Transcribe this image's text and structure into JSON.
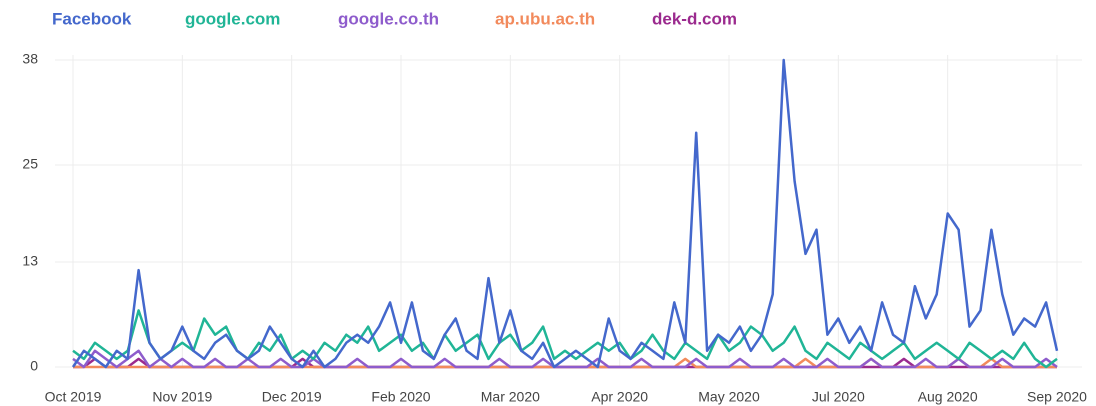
{
  "chart_data": {
    "type": "line",
    "categories": [
      "Oct 2019",
      null,
      null,
      null,
      null,
      null,
      null,
      null,
      null,
      null,
      "Nov 2019",
      null,
      null,
      null,
      null,
      null,
      null,
      null,
      null,
      null,
      "Dec 2019",
      null,
      null,
      null,
      null,
      null,
      null,
      null,
      null,
      null,
      "Feb 2020",
      null,
      null,
      null,
      null,
      null,
      null,
      null,
      null,
      null,
      "Mar 2020",
      null,
      null,
      null,
      null,
      null,
      null,
      null,
      null,
      null,
      "Apr 2020",
      null,
      null,
      null,
      null,
      null,
      null,
      null,
      null,
      null,
      "May 2020",
      null,
      null,
      null,
      null,
      null,
      null,
      null,
      null,
      null,
      "Jul 2020",
      null,
      null,
      null,
      null,
      null,
      null,
      null,
      null,
      null,
      "Aug 2020",
      null,
      null,
      null,
      null,
      null,
      null,
      null,
      null,
      null,
      "Sep 2020"
    ],
    "ylim": [
      0,
      38
    ],
    "yticks": [
      0,
      13,
      25,
      38
    ],
    "grid": true,
    "legend": "top",
    "series": [
      {
        "name": "Facebook",
        "color": "#4468cc",
        "values": [
          0,
          2,
          1,
          0,
          2,
          1,
          12,
          3,
          1,
          2,
          5,
          2,
          1,
          3,
          4,
          2,
          1,
          2,
          5,
          3,
          1,
          0,
          2,
          0,
          1,
          3,
          4,
          3,
          5,
          8,
          3,
          8,
          2,
          1,
          4,
          6,
          2,
          1,
          11,
          3,
          7,
          2,
          1,
          3,
          0,
          1,
          2,
          1,
          0,
          6,
          2,
          1,
          3,
          2,
          1,
          8,
          3,
          29,
          2,
          4,
          3,
          5,
          2,
          4,
          9,
          38,
          23,
          14,
          17,
          4,
          6,
          3,
          5,
          2,
          8,
          4,
          3,
          10,
          6,
          9,
          19,
          17,
          5,
          7,
          17,
          9,
          4,
          6,
          5,
          8,
          2
        ]
      },
      {
        "name": "google.com",
        "color": "#20b596",
        "values": [
          2,
          1,
          3,
          2,
          1,
          2,
          7,
          3,
          1,
          2,
          3,
          2,
          6,
          4,
          5,
          2,
          1,
          3,
          2,
          4,
          1,
          2,
          1,
          3,
          2,
          4,
          3,
          5,
          2,
          3,
          4,
          2,
          3,
          1,
          4,
          2,
          3,
          4,
          1,
          3,
          4,
          2,
          3,
          5,
          1,
          2,
          1,
          2,
          3,
          2,
          3,
          1,
          2,
          4,
          2,
          1,
          3,
          2,
          1,
          4,
          2,
          3,
          5,
          4,
          2,
          3,
          5,
          2,
          1,
          3,
          2,
          1,
          3,
          2,
          1,
          2,
          3,
          1,
          2,
          3,
          2,
          1,
          3,
          2,
          1,
          2,
          1,
          3,
          1,
          0,
          1
        ]
      },
      {
        "name": "google.co.th",
        "color": "#8e5ccc",
        "values": [
          1,
          0,
          2,
          1,
          0,
          1,
          2,
          0,
          1,
          0,
          1,
          0,
          0,
          1,
          0,
          0,
          1,
          0,
          0,
          1,
          0,
          0,
          1,
          0,
          0,
          0,
          1,
          0,
          0,
          0,
          1,
          0,
          0,
          0,
          1,
          0,
          0,
          0,
          0,
          1,
          0,
          0,
          0,
          1,
          0,
          0,
          0,
          0,
          1,
          0,
          0,
          0,
          1,
          0,
          0,
          0,
          0,
          1,
          0,
          0,
          0,
          1,
          0,
          0,
          0,
          1,
          0,
          0,
          0,
          1,
          0,
          0,
          0,
          1,
          0,
          0,
          0,
          0,
          1,
          0,
          0,
          1,
          0,
          0,
          0,
          1,
          0,
          0,
          0,
          1,
          0
        ]
      },
      {
        "name": "ap.ubu.ac.th",
        "color": "#f28a5c",
        "values": [
          0,
          0,
          0,
          0,
          0,
          0,
          0,
          0,
          0,
          0,
          0,
          0,
          0,
          0,
          0,
          0,
          0,
          0,
          0,
          0,
          0,
          0,
          0,
          0,
          0,
          0,
          0,
          0,
          0,
          0,
          0,
          0,
          0,
          0,
          0,
          0,
          0,
          0,
          0,
          0,
          0,
          0,
          0,
          0,
          0,
          0,
          0,
          0,
          0,
          0,
          0,
          0,
          0,
          0,
          0,
          0,
          1,
          0,
          0,
          0,
          0,
          0,
          0,
          0,
          0,
          0,
          0,
          1,
          0,
          0,
          0,
          0,
          0,
          1,
          0,
          0,
          0,
          0,
          0,
          0,
          0,
          1,
          0,
          0,
          1,
          0,
          0,
          0,
          0,
          0,
          0
        ]
      },
      {
        "name": "dek-d.com",
        "color": "#9b2a8e",
        "values": [
          0,
          0,
          1,
          0,
          0,
          0,
          1,
          0,
          0,
          0,
          0,
          0,
          0,
          0,
          0,
          0,
          0,
          0,
          0,
          0,
          0,
          1,
          0,
          0,
          0,
          0,
          0,
          0,
          0,
          0,
          0,
          0,
          0,
          0,
          0,
          0,
          0,
          0,
          0,
          0,
          0,
          0,
          0,
          0,
          0,
          0,
          0,
          0,
          0,
          0,
          0,
          0,
          0,
          0,
          0,
          0,
          0,
          0,
          0,
          0,
          0,
          0,
          0,
          0,
          0,
          0,
          0,
          0,
          0,
          0,
          0,
          0,
          0,
          0,
          0,
          0,
          1,
          0,
          0,
          0,
          0,
          0,
          0,
          0,
          0,
          0,
          0,
          0,
          0,
          0,
          0
        ]
      }
    ]
  }
}
